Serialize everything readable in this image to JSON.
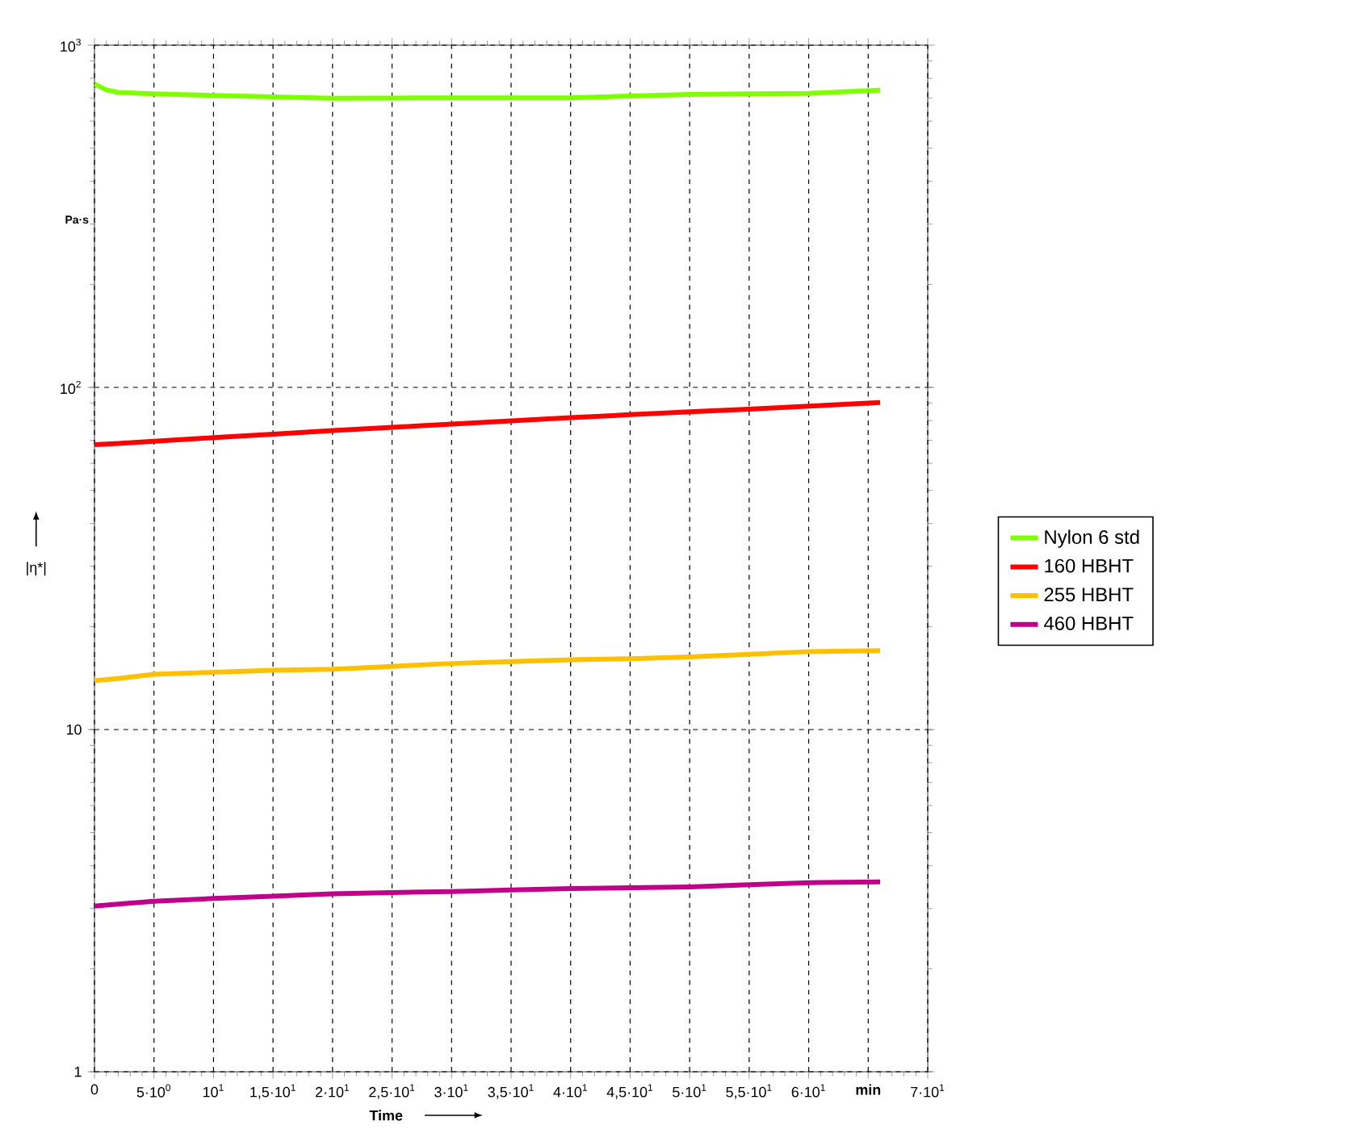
{
  "chart_data": {
    "type": "line",
    "xlabel": "Time",
    "ylabel": "|η*|",
    "annotations": [
      "Pa·s"
    ],
    "x": [
      0,
      1,
      2,
      5,
      10,
      15,
      20,
      25,
      30,
      35,
      40,
      45,
      50,
      55,
      60,
      66
    ],
    "series": [
      {
        "name": "Nylon 6 std",
        "color": "#80ff00",
        "values": [
          770,
          740,
          728,
          721,
          713,
          706,
          700,
          701,
          702,
          702,
          702,
          710,
          718,
          721,
          723,
          739
        ]
      },
      {
        "name": "160 HBHT",
        "color": "#ff0000",
        "values": [
          68,
          68.3,
          68.6,
          69.6,
          71.3,
          73,
          74.8,
          76.4,
          78.1,
          79.8,
          81.6,
          83.2,
          84.8,
          86.4,
          88.1,
          90.3
        ]
      },
      {
        "name": "255 HBHT",
        "color": "#ffc000",
        "values": [
          13.9,
          14.0,
          14.1,
          14.5,
          14.7,
          14.9,
          15.0,
          15.3,
          15.6,
          15.8,
          16.0,
          16.1,
          16.3,
          16.6,
          16.9,
          17.0
        ]
      },
      {
        "name": "460 HBHT",
        "color": "#c0008a",
        "values": [
          3.05,
          3.07,
          3.09,
          3.15,
          3.21,
          3.26,
          3.31,
          3.34,
          3.36,
          3.4,
          3.43,
          3.45,
          3.47,
          3.52,
          3.57,
          3.59
        ]
      }
    ],
    "xlim": [
      0,
      70
    ],
    "xticks": [
      0,
      {
        "value": 5,
        "label": "5·10$^{0}$"
      },
      {
        "value": 10,
        "label": "10$^{1}$"
      },
      {
        "value": 15,
        "label": "1,5·10$^{1}$"
      },
      {
        "value": 20,
        "label": "2·10$^{1}$"
      },
      {
        "value": 25,
        "label": "2,5·10$^{1}$"
      },
      {
        "value": 30,
        "label": "3·10$^{1}$"
      },
      {
        "value": 35,
        "label": "3,5·10$^{1}$"
      },
      {
        "value": 40,
        "label": "4·10$^{1}$"
      },
      {
        "value": 45,
        "label": "4,5·10$^{1}$"
      },
      {
        "value": 50,
        "label": "5·10$^{1}$"
      },
      {
        "value": 55,
        "label": "5,5·10$^{1}$"
      },
      {
        "value": 60,
        "label": "6·10$^{1}$"
      },
      {
        "value": 65,
        "label": "**min**"
      },
      {
        "value": 70,
        "label": "7·10$^{1}$"
      }
    ],
    "ylim": [
      1,
      1000
    ],
    "yticks": [
      1,
      10,
      {
        "value": 100,
        "label": "10$^{2}$"
      },
      {
        "value": 1000,
        "label": "10$^{3}$"
      }
    ],
    "log": "y",
    "grid": true,
    "legend": "right"
  }
}
